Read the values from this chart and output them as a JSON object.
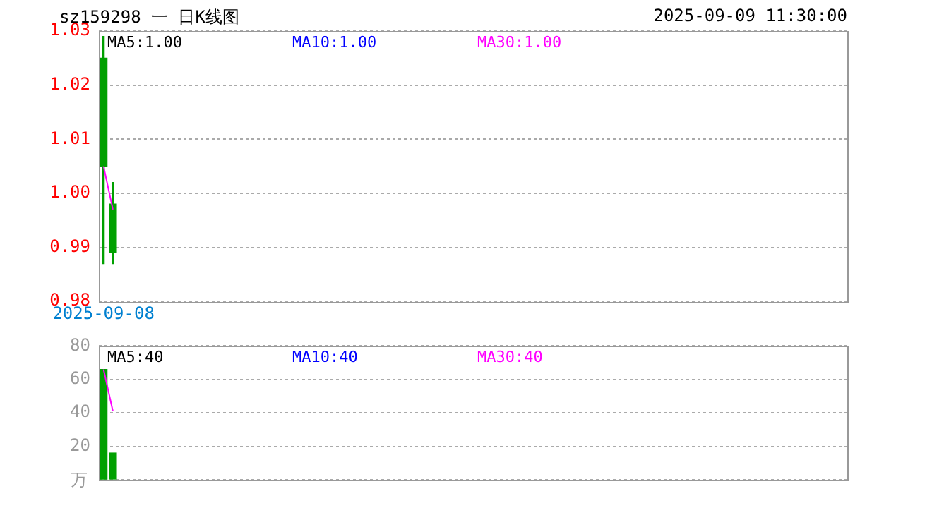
{
  "chart_data": [
    {
      "type": "candlestick",
      "title": "sz159298 一 日K线图",
      "subtitle": "2025-09-09 11:30:00",
      "categories": [
        "2025-09-08",
        null,
        null,
        null,
        null,
        null,
        null,
        null,
        null,
        null,
        null,
        null,
        null,
        null,
        null,
        null,
        null,
        null,
        null,
        null,
        null,
        null,
        null,
        null,
        null,
        null,
        null,
        null,
        null,
        null,
        null,
        null,
        null,
        null,
        null,
        null,
        null,
        null,
        null,
        null,
        null,
        null,
        null,
        null,
        null,
        null,
        null,
        null,
        null,
        null,
        null,
        null,
        null,
        null,
        null,
        null,
        null,
        null,
        null,
        null,
        null,
        null,
        null,
        null,
        null,
        null,
        null,
        null,
        null,
        null,
        null,
        null,
        null,
        null,
        null,
        null,
        null,
        null,
        null,
        null
      ],
      "ohlc": [
        [
          1.025,
          1.029,
          0.987,
          1.005
        ],
        [
          0.998,
          1.002,
          0.987,
          0.989
        ],
        null,
        null,
        null,
        null,
        null,
        null,
        null,
        null,
        null,
        null,
        null,
        null,
        null,
        null,
        null,
        null,
        null,
        null,
        null,
        null,
        null,
        null,
        null,
        null,
        null,
        null,
        null,
        null,
        null,
        null,
        null,
        null,
        null,
        null,
        null,
        null,
        null,
        null,
        null,
        null,
        null,
        null,
        null,
        null,
        null,
        null,
        null,
        null,
        null,
        null,
        null,
        null,
        null,
        null,
        null,
        null,
        null,
        null,
        null,
        null,
        null,
        null,
        null,
        null,
        null,
        null,
        null,
        null,
        null,
        null,
        null,
        null,
        null,
        null,
        null,
        null,
        null,
        null
      ],
      "color": "#00a000",
      "series": [
        {
          "type": "line",
          "name": "MA30:1.00",
          "color": "#ff00ff",
          "values": [
            1.005,
            0.997,
            null,
            null,
            null,
            null,
            null,
            null,
            null,
            null,
            null,
            null,
            null,
            null,
            null,
            null,
            null,
            null,
            null,
            null,
            null,
            null,
            null,
            null,
            null,
            null,
            null,
            null,
            null,
            null,
            null,
            null,
            null,
            null,
            null,
            null,
            null,
            null,
            null,
            null,
            null,
            null,
            null,
            null,
            null,
            null,
            null,
            null,
            null,
            null,
            null,
            null,
            null,
            null,
            null,
            null,
            null,
            null,
            null,
            null,
            null,
            null,
            null,
            null,
            null,
            null,
            null,
            null,
            null,
            null,
            null,
            null,
            null,
            null,
            null,
            null,
            null,
            null,
            null,
            null
          ]
        }
      ],
      "annotations": [
        "MA5:1.00",
        "MA10:1.00"
      ],
      "ylim": [
        0.98,
        1.03
      ],
      "yticks": [
        0.98,
        0.99,
        {
          "value": 1,
          "label": "1.00"
        },
        1.01,
        1.02,
        1.03
      ],
      "grid": "y",
      "legend": "top"
    },
    {
      "type": "bar",
      "ylabel": "万",
      "categories": [
        null,
        null,
        null,
        null,
        null,
        null,
        null,
        null,
        null,
        null,
        null,
        null,
        null,
        null,
        null,
        null,
        null,
        null,
        null,
        null,
        null,
        null,
        null,
        null,
        null,
        null,
        null,
        null,
        null,
        null,
        null,
        null,
        null,
        null,
        null,
        null,
        null,
        null,
        null,
        null,
        null,
        null,
        null,
        null,
        null,
        null,
        null,
        null,
        null,
        null,
        null,
        null,
        null,
        null,
        null,
        null,
        null,
        null,
        null,
        null,
        null,
        null,
        null,
        null,
        null,
        null,
        null,
        null,
        null,
        null,
        null,
        null,
        null,
        null,
        null,
        null,
        null,
        null,
        null,
        null
      ],
      "series": [
        {
          "type": "bar",
          "color": "#00a000",
          "values": [
            66,
            16,
            null,
            null,
            null,
            null,
            null,
            null,
            null,
            null,
            null,
            null,
            null,
            null,
            null,
            null,
            null,
            null,
            null,
            null,
            null,
            null,
            null,
            null,
            null,
            null,
            null,
            null,
            null,
            null,
            null,
            null,
            null,
            null,
            null,
            null,
            null,
            null,
            null,
            null,
            null,
            null,
            null,
            null,
            null,
            null,
            null,
            null,
            null,
            null,
            null,
            null,
            null,
            null,
            null,
            null,
            null,
            null,
            null,
            null,
            null,
            null,
            null,
            null,
            null,
            null,
            null,
            null,
            null,
            null,
            null,
            null,
            null,
            null,
            null,
            null,
            null,
            null,
            null,
            null
          ]
        },
        {
          "type": "line",
          "name": "MA30:40",
          "color": "#ff00ff",
          "values": [
            66,
            41,
            null,
            null,
            null,
            null,
            null,
            null,
            null,
            null,
            null,
            null,
            null,
            null,
            null,
            null,
            null,
            null,
            null,
            null,
            null,
            null,
            null,
            null,
            null,
            null,
            null,
            null,
            null,
            null,
            null,
            null,
            null,
            null,
            null,
            null,
            null,
            null,
            null,
            null,
            null,
            null,
            null,
            null,
            null,
            null,
            null,
            null,
            null,
            null,
            null,
            null,
            null,
            null,
            null,
            null,
            null,
            null,
            null,
            null,
            null,
            null,
            null,
            null,
            null,
            null,
            null,
            null,
            null,
            null,
            null,
            null,
            null,
            null,
            null,
            null,
            null,
            null,
            null,
            null
          ]
        }
      ],
      "annotations": [
        "MA5:40",
        "MA10:40"
      ],
      "ylim": [
        0,
        80
      ],
      "yticks": [
        {
          "value": 0,
          "label": null
        },
        20,
        40,
        60,
        80
      ],
      "grid": "y",
      "legend": "top",
      "tick_labels": "y"
    }
  ]
}
